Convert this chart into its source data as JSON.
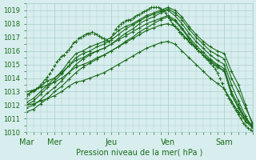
{
  "title": "",
  "xlabel": "Pression niveau de la mer( hPa )",
  "ylabel": "",
  "ylim": [
    1010,
    1019.5
  ],
  "yticks": [
    1010,
    1011,
    1012,
    1013,
    1014,
    1015,
    1016,
    1017,
    1018,
    1019
  ],
  "background_color": "#d8eeee",
  "grid_color": "#aacccc",
  "line_color": "#1a6b1a",
  "day_labels": [
    "Mar",
    "Mer",
    "Jeu",
    "Ven",
    "Sam"
  ],
  "day_positions": [
    0,
    24,
    72,
    120,
    168
  ],
  "total_hours": 192,
  "series": [
    {
      "x": [
        0,
        2,
        4,
        6,
        8,
        10,
        12,
        14,
        16,
        18,
        20,
        22,
        24,
        26,
        28,
        30,
        32,
        34,
        36,
        38,
        40,
        42,
        44,
        46,
        48,
        50,
        52,
        54,
        56,
        58,
        60,
        62,
        64,
        66,
        68,
        70,
        72,
        74,
        76,
        78,
        80,
        82,
        84,
        86,
        88,
        90,
        92,
        94,
        96,
        98,
        100,
        102,
        104,
        106,
        108,
        110,
        112,
        114,
        116,
        118,
        120,
        122,
        124,
        126,
        128,
        130,
        132,
        134,
        136,
        138,
        140,
        142,
        144,
        146,
        148,
        150,
        152,
        154,
        156,
        158,
        160,
        162,
        164,
        166,
        168,
        170,
        172,
        174,
        176,
        178,
        180,
        182,
        184,
        186,
        188,
        190,
        192
      ],
      "y": [
        1012.5,
        1012.8,
        1013.0,
        1013.1,
        1013.2,
        1013.3,
        1013.5,
        1013.7,
        1013.9,
        1014.1,
        1014.3,
        1014.6,
        1014.9,
        1015.2,
        1015.4,
        1015.6,
        1015.7,
        1015.9,
        1016.1,
        1016.3,
        1016.6,
        1016.7,
        1016.9,
        1017.0,
        1017.1,
        1017.2,
        1017.3,
        1017.3,
        1017.4,
        1017.3,
        1017.2,
        1017.1,
        1017.0,
        1016.9,
        1016.8,
        1016.7,
        1017.0,
        1017.3,
        1017.6,
        1017.8,
        1018.0,
        1018.1,
        1018.2,
        1018.3,
        1018.3,
        1018.4,
        1018.5,
        1018.6,
        1018.7,
        1018.8,
        1018.9,
        1019.0,
        1019.1,
        1019.2,
        1019.2,
        1019.2,
        1019.2,
        1019.1,
        1019.0,
        1018.8,
        1018.5,
        1018.3,
        1018.0,
        1017.8,
        1017.6,
        1017.4,
        1017.2,
        1017.0,
        1016.9,
        1016.7,
        1016.5,
        1016.4,
        1016.2,
        1016.0,
        1015.9,
        1015.7,
        1015.5,
        1015.3,
        1015.1,
        1014.9,
        1014.7,
        1014.4,
        1014.0,
        1013.6,
        1013.2,
        1012.8,
        1012.5,
        1012.2,
        1011.9,
        1011.6,
        1011.3,
        1011.0,
        1010.7,
        1010.5,
        1010.3,
        1010.2,
        1010.1
      ],
      "style": "dotted",
      "marker": "+"
    },
    {
      "x": [
        0,
        6,
        12,
        18,
        24,
        30,
        36,
        42,
        48,
        54,
        60,
        66,
        72,
        78,
        84,
        90,
        96,
        102,
        108,
        114,
        120,
        126,
        132,
        138,
        144,
        150,
        156,
        162,
        168,
        174,
        180,
        186,
        192
      ],
      "y": [
        1012.2,
        1012.5,
        1013.0,
        1013.5,
        1014.0,
        1014.5,
        1015.2,
        1015.8,
        1016.0,
        1016.3,
        1016.5,
        1016.7,
        1017.0,
        1017.5,
        1017.8,
        1018.0,
        1018.3,
        1018.6,
        1018.8,
        1019.0,
        1019.2,
        1019.0,
        1018.5,
        1017.8,
        1017.2,
        1016.7,
        1016.3,
        1016.0,
        1015.8,
        1014.5,
        1013.5,
        1012.0,
        1010.5
      ],
      "style": "solid",
      "marker": "+"
    },
    {
      "x": [
        0,
        6,
        12,
        18,
        24,
        30,
        36,
        42,
        48,
        54,
        60,
        66,
        72,
        78,
        84,
        90,
        96,
        102,
        108,
        114,
        120,
        126,
        132,
        138,
        144,
        150,
        156,
        162,
        168,
        174,
        180,
        186,
        192
      ],
      "y": [
        1012.0,
        1012.3,
        1012.8,
        1013.3,
        1013.8,
        1014.3,
        1014.9,
        1015.5,
        1015.8,
        1016.0,
        1016.3,
        1016.5,
        1016.8,
        1017.2,
        1017.6,
        1017.9,
        1018.2,
        1018.5,
        1018.7,
        1018.9,
        1019.1,
        1018.8,
        1018.3,
        1017.6,
        1017.0,
        1016.5,
        1016.0,
        1015.7,
        1015.4,
        1014.0,
        1013.0,
        1011.8,
        1010.7
      ],
      "style": "solid",
      "marker": "+"
    },
    {
      "x": [
        0,
        6,
        12,
        18,
        24,
        30,
        36,
        42,
        48,
        54,
        60,
        66,
        72,
        78,
        84,
        90,
        96,
        102,
        108,
        114,
        120,
        126,
        132,
        138,
        144,
        150,
        156,
        162,
        168,
        174,
        180,
        186,
        192
      ],
      "y": [
        1011.8,
        1012.0,
        1012.4,
        1012.9,
        1013.3,
        1013.8,
        1014.4,
        1015.0,
        1015.4,
        1015.7,
        1016.0,
        1016.2,
        1016.5,
        1016.9,
        1017.3,
        1017.6,
        1018.0,
        1018.3,
        1018.5,
        1018.8,
        1019.0,
        1018.6,
        1018.0,
        1017.3,
        1016.7,
        1016.2,
        1015.7,
        1015.3,
        1015.0,
        1013.5,
        1012.3,
        1011.2,
        1010.3
      ],
      "style": "solid",
      "marker": "+"
    },
    {
      "x": [
        0,
        6,
        12,
        18,
        24,
        30,
        36,
        42,
        48,
        54,
        60,
        66,
        72,
        78,
        84,
        90,
        96,
        102,
        108,
        114,
        120,
        126,
        132,
        138,
        144,
        150,
        156,
        162,
        168,
        174,
        180,
        186,
        192
      ],
      "y": [
        1011.5,
        1011.7,
        1012.1,
        1012.5,
        1013.0,
        1013.4,
        1013.9,
        1014.4,
        1014.8,
        1015.1,
        1015.4,
        1015.7,
        1016.0,
        1016.3,
        1016.7,
        1017.0,
        1017.4,
        1017.7,
        1018.0,
        1018.3,
        1018.5,
        1018.2,
        1017.6,
        1016.9,
        1016.2,
        1015.7,
        1015.2,
        1014.8,
        1014.5,
        1012.8,
        1011.8,
        1011.0,
        1010.5
      ],
      "style": "solid",
      "marker": "+"
    },
    {
      "x": [
        0,
        6,
        12,
        18,
        24,
        30,
        36,
        42,
        48,
        54,
        60,
        66,
        72,
        78,
        84,
        90,
        96,
        102,
        108,
        114,
        120,
        126,
        132,
        138,
        144,
        150,
        156,
        162,
        168,
        174,
        180,
        186,
        192
      ],
      "y": [
        1012.8,
        1013.0,
        1013.4,
        1013.8,
        1014.0,
        1014.4,
        1014.9,
        1015.3,
        1015.5,
        1015.8,
        1016.0,
        1016.2,
        1016.5,
        1016.8,
        1017.1,
        1017.4,
        1017.7,
        1018.0,
        1018.2,
        1018.4,
        1018.6,
        1018.3,
        1017.7,
        1017.0,
        1016.4,
        1015.9,
        1015.4,
        1015.0,
        1014.7,
        1013.0,
        1012.0,
        1011.0,
        1010.4
      ],
      "style": "solid",
      "marker": "+"
    },
    {
      "x": [
        0,
        6,
        12,
        18,
        24,
        30,
        36,
        42,
        48,
        54,
        60,
        66,
        72,
        78,
        84,
        90,
        96,
        102,
        108,
        114,
        120,
        126,
        132,
        138,
        144,
        150,
        156,
        162,
        168,
        174,
        180,
        186,
        192
      ],
      "y": [
        1013.0,
        1013.1,
        1013.3,
        1013.5,
        1013.7,
        1014.0,
        1014.4,
        1014.8,
        1015.0,
        1015.2,
        1015.5,
        1015.7,
        1016.0,
        1016.3,
        1016.6,
        1016.9,
        1017.2,
        1017.5,
        1017.7,
        1017.9,
        1018.0,
        1017.8,
        1017.3,
        1016.7,
        1016.2,
        1015.7,
        1015.3,
        1014.9,
        1014.5,
        1012.8,
        1011.8,
        1010.8,
        1010.3
      ],
      "style": "solid",
      "marker": "+"
    },
    {
      "x": [
        0,
        6,
        12,
        18,
        24,
        30,
        36,
        42,
        48,
        54,
        60,
        66,
        72,
        78,
        84,
        90,
        96,
        102,
        108,
        114,
        120,
        126,
        132,
        138,
        144,
        150,
        156,
        162,
        168,
        174,
        180,
        186,
        192
      ],
      "y": [
        1012.0,
        1012.1,
        1012.3,
        1012.5,
        1012.7,
        1013.0,
        1013.4,
        1013.7,
        1013.8,
        1014.0,
        1014.2,
        1014.4,
        1014.7,
        1015.0,
        1015.3,
        1015.6,
        1015.9,
        1016.2,
        1016.4,
        1016.6,
        1016.7,
        1016.5,
        1016.0,
        1015.5,
        1015.0,
        1014.5,
        1014.0,
        1013.6,
        1013.2,
        1012.3,
        1011.5,
        1010.8,
        1010.5
      ],
      "style": "solid",
      "marker": "+"
    }
  ]
}
